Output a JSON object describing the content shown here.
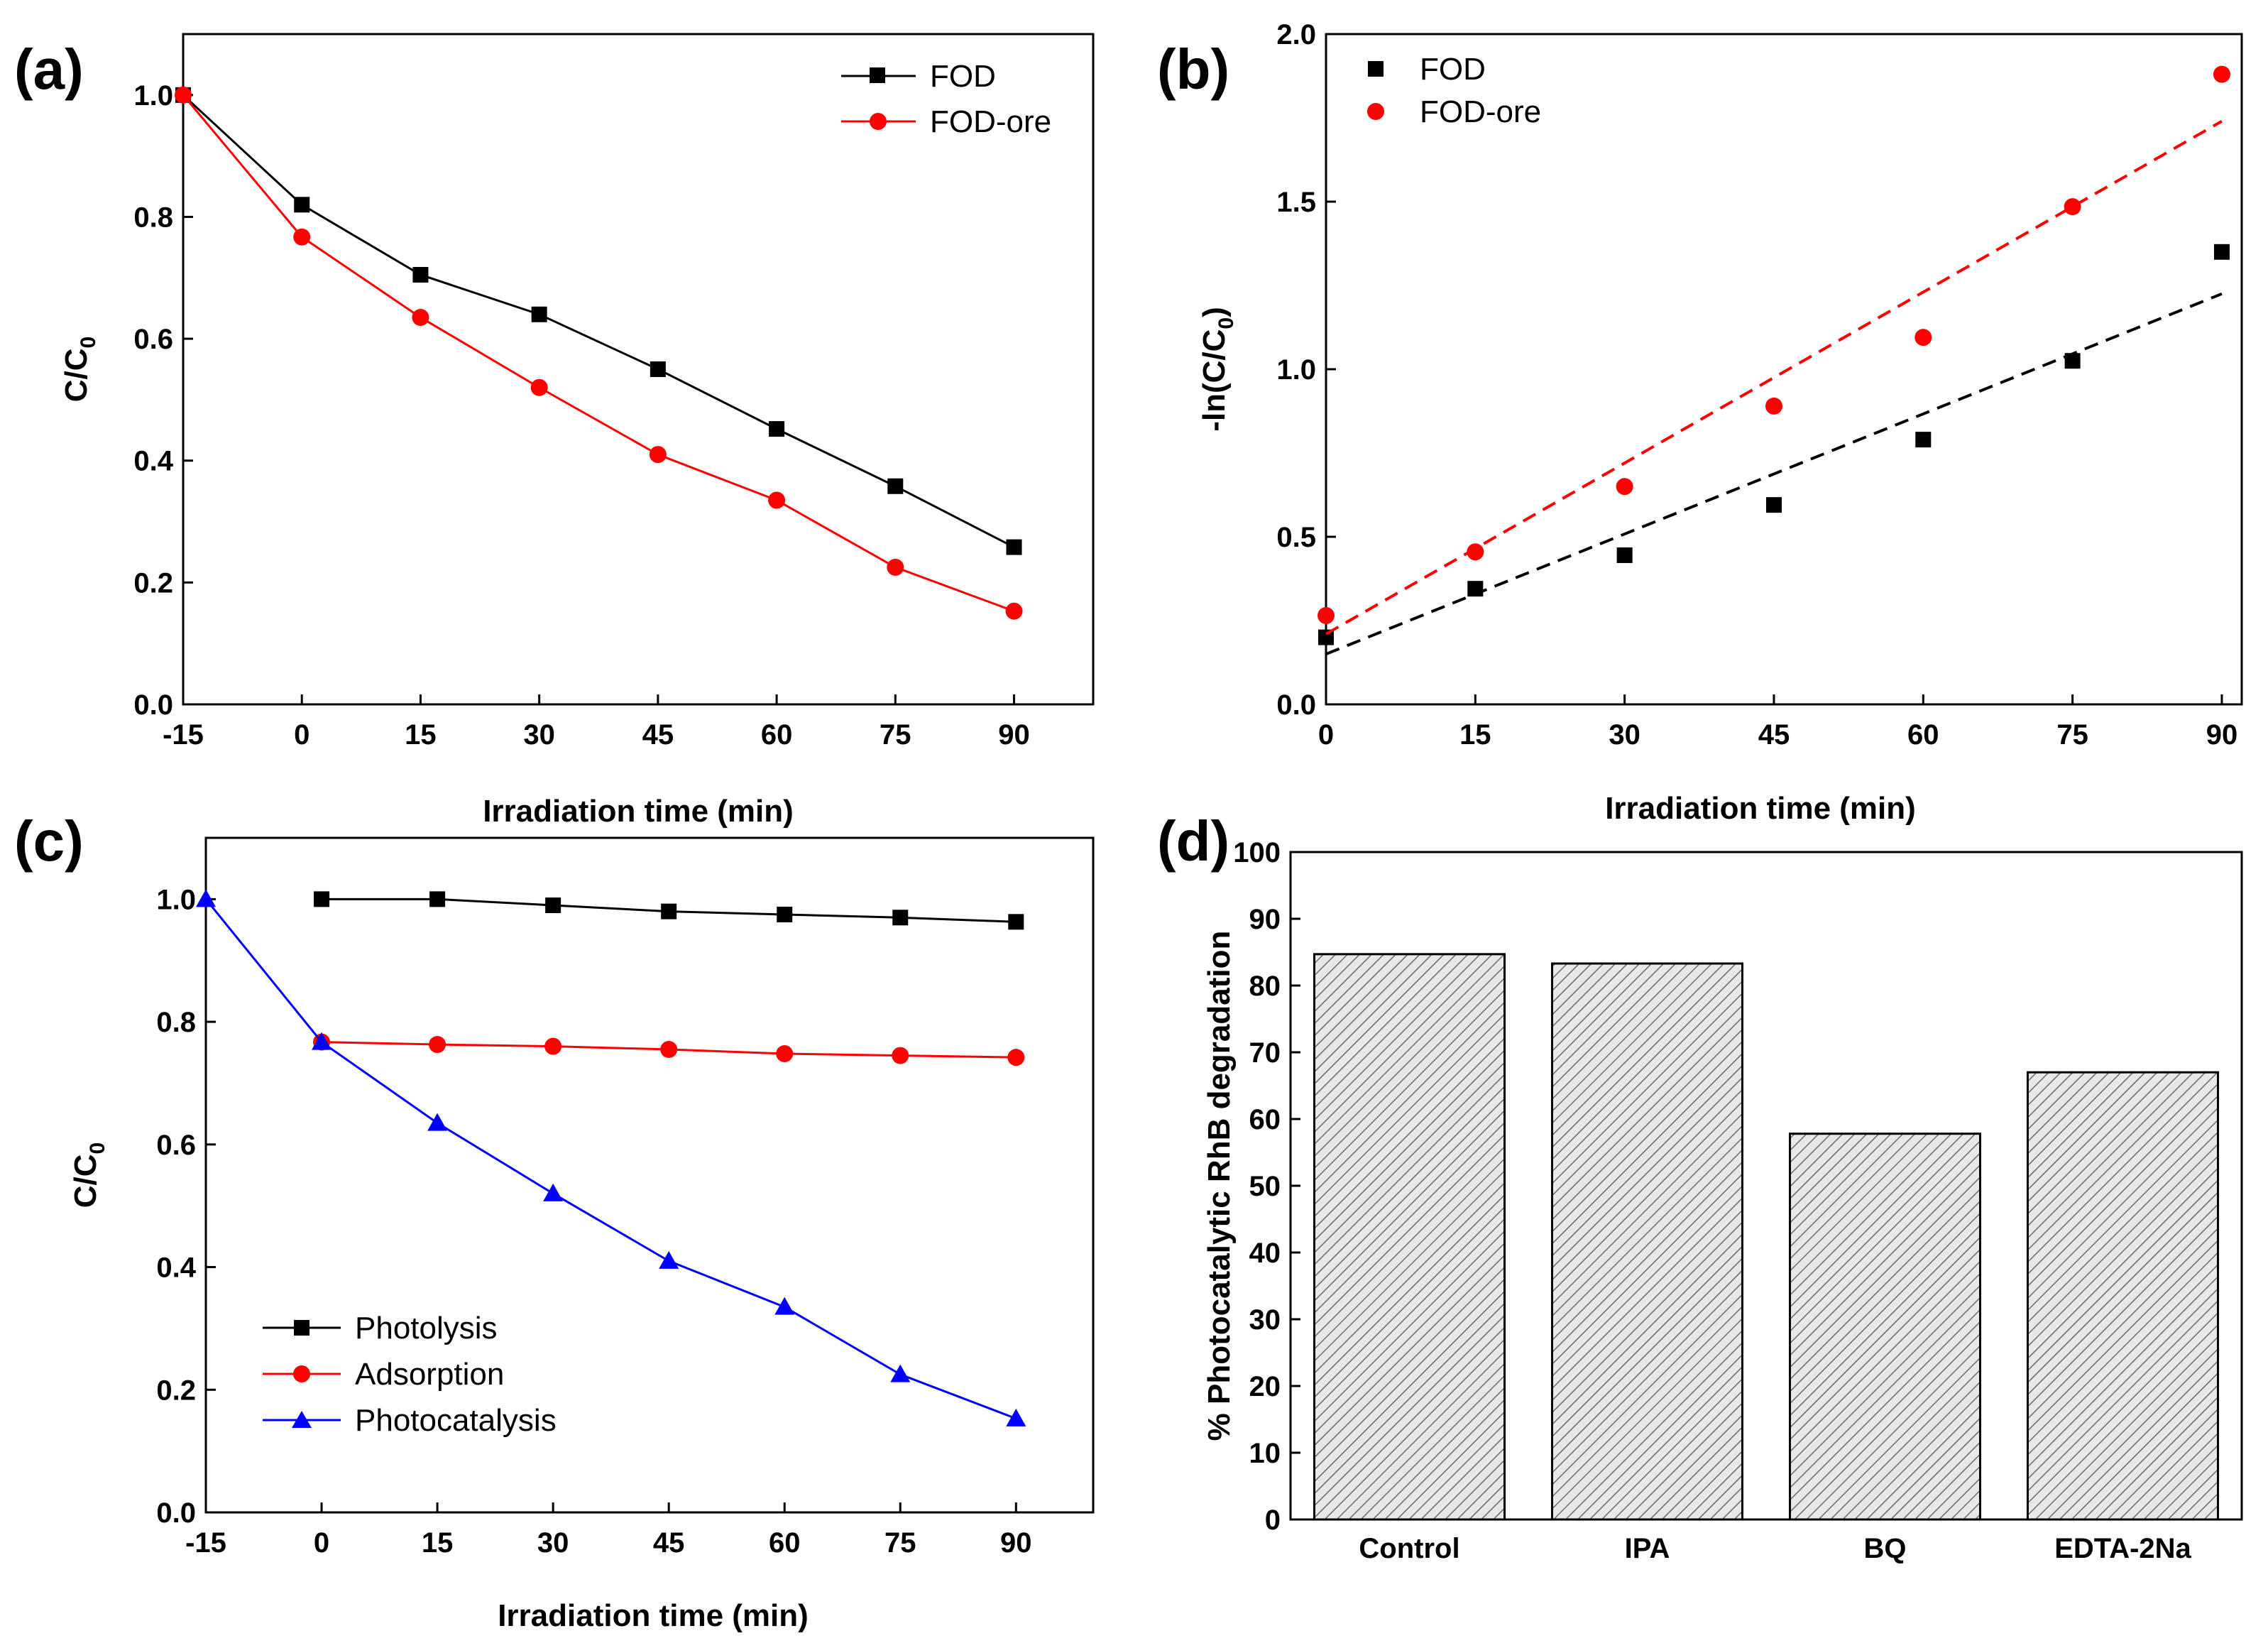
{
  "chart_data": [
    {
      "panel": "(a)",
      "type": "line",
      "title": "",
      "xlabel": "Irradiation time (min)",
      "ylabel": "C/C0",
      "ylabel_main": "C/C",
      "ylabel_sub": "0",
      "x": [
        -15,
        0,
        15,
        30,
        45,
        60,
        75,
        90
      ],
      "xlim": [
        -15,
        100
      ],
      "ylim": [
        0,
        1.1
      ],
      "xticks": [
        "-15",
        "0",
        "15",
        "30",
        "45",
        "60",
        "75",
        "90"
      ],
      "yticks": [
        "0.0",
        "0.2",
        "0.4",
        "0.6",
        "0.8",
        "1.0"
      ],
      "legend_position": "top-right",
      "series": [
        {
          "name": "FOD",
          "color": "#000000",
          "marker": "square",
          "values": [
            1.0,
            0.82,
            0.705,
            0.64,
            0.55,
            0.452,
            0.358,
            0.258
          ]
        },
        {
          "name": "FOD-ore",
          "color": "#ff0000",
          "marker": "circle",
          "values": [
            1.0,
            0.767,
            0.635,
            0.52,
            0.41,
            0.335,
            0.225,
            0.153
          ]
        }
      ]
    },
    {
      "panel": "(b)",
      "type": "scatter",
      "title": "",
      "xlabel": "Irradiation time (min)",
      "ylabel": "-ln(C/C0)",
      "ylabel_main": "-ln(C/C",
      "ylabel_sub": "0",
      "ylabel_close": ")",
      "x": [
        0,
        15,
        30,
        45,
        60,
        75,
        90
      ],
      "xlim": [
        0,
        92
      ],
      "ylim": [
        0,
        2.0
      ],
      "xticks": [
        "0",
        "15",
        "30",
        "45",
        "60",
        "75",
        "90"
      ],
      "yticks": [
        "0.0",
        "0.5",
        "1.0",
        "1.5",
        "2.0"
      ],
      "legend_position": "top-left",
      "series": [
        {
          "name": "FOD",
          "color": "#000000",
          "marker": "square",
          "values": [
            0.2,
            0.345,
            0.445,
            0.595,
            0.79,
            1.025,
            1.35
          ],
          "fit": [
            0.15,
            1.225
          ]
        },
        {
          "name": "FOD-ore",
          "color": "#ff0000",
          "marker": "circle",
          "values": [
            0.265,
            0.455,
            0.65,
            0.89,
            1.095,
            1.485,
            1.88
          ],
          "fit": [
            0.21,
            1.74
          ]
        }
      ]
    },
    {
      "panel": "(c)",
      "type": "line",
      "title": "",
      "xlabel": "Irradiation time (min)",
      "ylabel": "C/C0",
      "ylabel_main": "C/C",
      "ylabel_sub": "0",
      "x": [
        -15,
        0,
        15,
        30,
        45,
        60,
        75,
        90
      ],
      "xlim": [
        -15,
        100
      ],
      "ylim": [
        0,
        1.1
      ],
      "xticks": [
        "-15",
        "0",
        "15",
        "30",
        "45",
        "60",
        "75",
        "90"
      ],
      "yticks": [
        "0.0",
        "0.2",
        "0.4",
        "0.6",
        "0.8",
        "1.0"
      ],
      "legend_position": "bottom-left",
      "series": [
        {
          "name": "Photolysis",
          "color": "#000000",
          "marker": "square",
          "x": [
            0,
            15,
            30,
            45,
            60,
            75,
            90
          ],
          "values": [
            1.0,
            1.0,
            0.99,
            0.98,
            0.975,
            0.97,
            0.963
          ]
        },
        {
          "name": "Adsorption",
          "color": "#ff0000",
          "marker": "circle",
          "x": [
            0,
            15,
            30,
            45,
            60,
            75,
            90
          ],
          "values": [
            0.767,
            0.763,
            0.76,
            0.755,
            0.748,
            0.745,
            0.742
          ]
        },
        {
          "name": "Photocatalysis",
          "color": "#0000ff",
          "marker": "triangle",
          "x": [
            -15,
            0,
            15,
            30,
            45,
            60,
            75,
            90
          ],
          "values": [
            1.0,
            0.767,
            0.635,
            0.52,
            0.41,
            0.335,
            0.225,
            0.153
          ]
        }
      ]
    },
    {
      "panel": "(d)",
      "type": "bar",
      "title": "",
      "xlabel": "",
      "ylabel": "% Photocatalytic RhB degradation",
      "categories": [
        "Control",
        "IPA",
        "BQ",
        "EDTA-2Na"
      ],
      "values": [
        84.7,
        83.3,
        57.8,
        67.0
      ],
      "ylim": [
        0,
        100
      ],
      "yticks": [
        "0",
        "10",
        "20",
        "30",
        "40",
        "50",
        "60",
        "70",
        "80",
        "90",
        "100"
      ],
      "bar_fill": "hatched gray"
    }
  ]
}
